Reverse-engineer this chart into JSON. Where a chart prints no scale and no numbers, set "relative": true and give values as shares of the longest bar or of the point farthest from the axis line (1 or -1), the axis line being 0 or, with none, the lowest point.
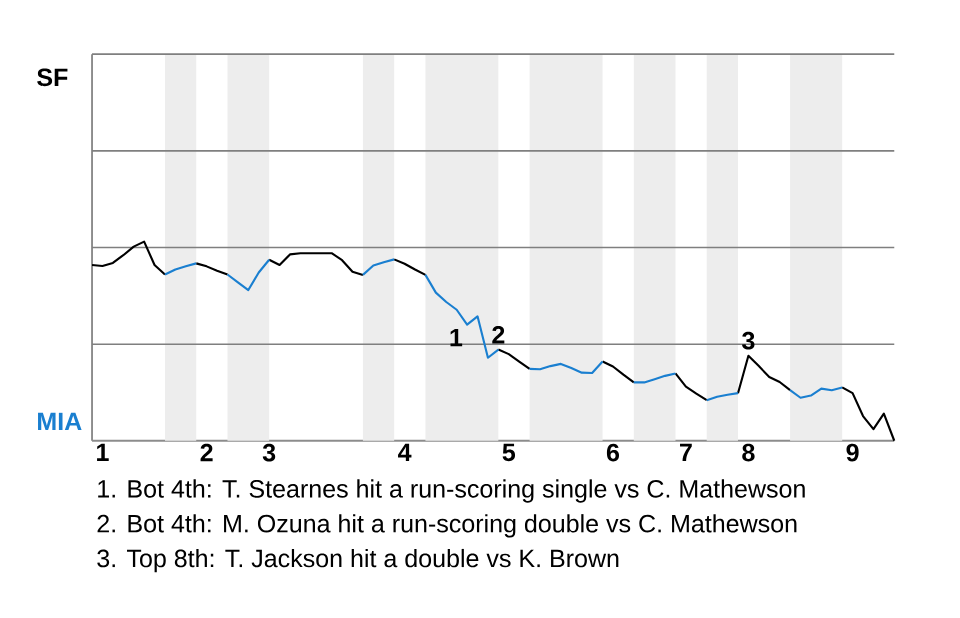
{
  "chart_data": {
    "type": "line",
    "relative": true,
    "categories": [
      null,
      "1",
      null,
      null,
      null,
      null,
      null,
      null,
      null,
      null,
      null,
      "2",
      null,
      null,
      null,
      null,
      null,
      "3",
      null,
      null,
      null,
      null,
      null,
      null,
      null,
      null,
      null,
      null,
      null,
      null,
      "4",
      null,
      null,
      null,
      null,
      null,
      null,
      null,
      null,
      null,
      "5",
      null,
      null,
      null,
      null,
      null,
      null,
      null,
      null,
      null,
      "6",
      null,
      null,
      null,
      null,
      null,
      null,
      "7",
      null,
      null,
      null,
      null,
      null,
      "8",
      null,
      null,
      null,
      null,
      null,
      null,
      null,
      null,
      null,
      "9",
      null,
      null,
      null,
      null
    ],
    "ref_lines": [
      {
        "axis": "y",
        "value": 0.485,
        "color": "#7f7f7f"
      },
      {
        "axis": "y",
        "value": 0.971,
        "color": "#7f7f7f"
      },
      {
        "axis": "y",
        "value": 1.456,
        "color": "#7f7f7f"
      },
      {
        "axis": "y",
        "value": 1.942,
        "color": "#7f7f7f"
      }
    ],
    "series": [
      {
        "color": "#000000",
        "values": [
          0.883,
          0.878,
          0.893,
          0.932,
          0.975,
          1,
          0.883,
          0.835,
          null,
          null,
          0.891,
          0.876,
          0.854,
          0.835,
          null,
          null,
          null,
          0.909,
          0.883,
          0.936,
          0.942,
          0.942,
          0.942,
          0.942,
          0.907,
          0.849,
          0.833,
          null,
          null,
          0.911,
          0.889,
          0.86,
          0.833,
          null,
          null,
          null,
          null,
          null,
          null,
          0.458,
          0.435,
          0.398,
          0.361,
          null,
          null,
          null,
          null,
          null,
          null,
          0.398,
          0.373,
          0.332,
          0.293,
          null,
          null,
          null,
          0.338,
          0.272,
          0.237,
          0.204,
          null,
          null,
          0.239,
          0.427,
          0.375,
          0.32,
          0.295,
          0.254,
          null,
          null,
          null,
          null,
          0.268,
          0.239,
          0.124,
          0.058,
          0.136,
          0
        ]
      },
      {
        "color": "#1a7fd0",
        "values": [
          null,
          null,
          null,
          null,
          null,
          null,
          null,
          0.835,
          0.86,
          0.876,
          0.891,
          null,
          null,
          0.835,
          0.796,
          0.757,
          0.845,
          0.909,
          null,
          null,
          null,
          null,
          null,
          null,
          null,
          null,
          0.833,
          0.88,
          0.897,
          0.911,
          null,
          null,
          0.833,
          0.744,
          0.697,
          0.658,
          0.583,
          0.625,
          0.417,
          0.458,
          null,
          null,
          0.361,
          0.359,
          0.375,
          0.386,
          0.365,
          0.342,
          0.34,
          0.398,
          null,
          null,
          0.293,
          0.293,
          0.309,
          0.326,
          0.338,
          null,
          null,
          0.204,
          0.221,
          0.231,
          0.239,
          null,
          null,
          null,
          null,
          0.254,
          0.216,
          0.227,
          0.262,
          0.254,
          0.268,
          null,
          null,
          null,
          null,
          null
        ]
      }
    ],
    "annotations": [
      "SF",
      "MIA",
      {
        "text": "1",
        "y": 0.583
      },
      {
        "text": "2",
        "y": 0.458
      },
      {
        "text": "3",
        "y": 0.427
      },
      "1. Bot 4th: T. Stearnes hit a run-scoring single vs C. Mathewson",
      "2. Bot 4th: M. Ozuna hit a run-scoring double vs C. Mathewson",
      "3. Top 8th: T. Jackson hit a double vs K. Brown"
    ]
  }
}
